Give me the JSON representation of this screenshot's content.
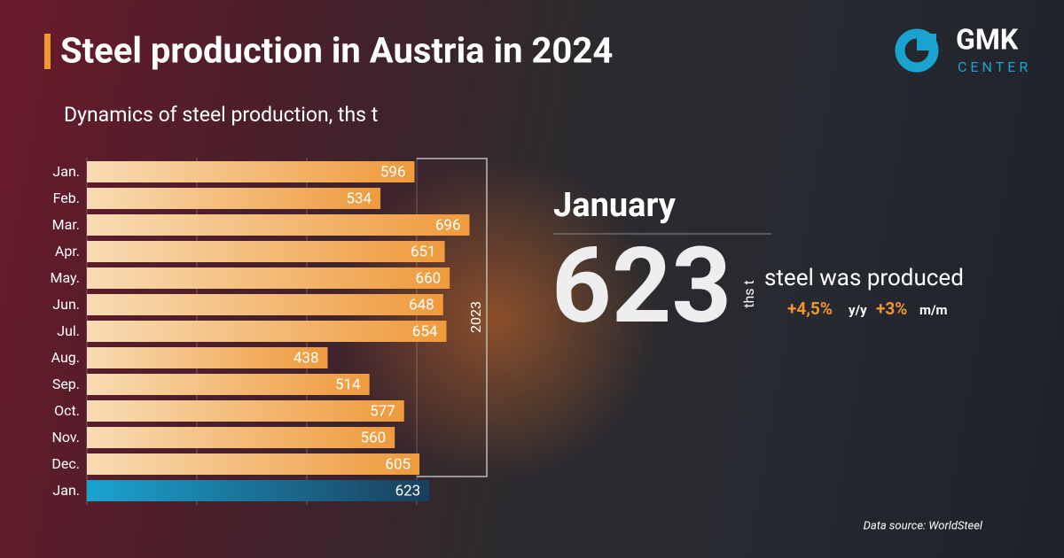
{
  "header": {
    "title": "Steel production in Austria in 2024",
    "logo": "GMK",
    "logo_sub": "CENTER"
  },
  "chart_data": {
    "type": "bar",
    "orientation": "horizontal",
    "title": "Dynamics of steel production, ths t",
    "categories": [
      "Jan.",
      "Feb.",
      "Mar.",
      "Apr.",
      "May.",
      "Jun.",
      "Jul.",
      "Aug.",
      "Sep.",
      "Oct.",
      "Nov.",
      "Dec.",
      "Jan."
    ],
    "values": [
      596,
      534,
      696,
      651,
      660,
      648,
      654,
      438,
      514,
      577,
      560,
      605,
      623
    ],
    "colors": [
      "#ef9a3c",
      "#ef9a3c",
      "#ef9a3c",
      "#ef9a3c",
      "#ef9a3c",
      "#ef9a3c",
      "#ef9a3c",
      "#ef9a3c",
      "#ef9a3c",
      "#ef9a3c",
      "#ef9a3c",
      "#ef9a3c",
      "#1aa3cf"
    ],
    "xlim": [
      0,
      700
    ],
    "xticks": [
      0,
      200,
      400,
      600
    ],
    "grid": true,
    "bracket_label": "2023"
  },
  "highlight": {
    "month": "January",
    "value": "623",
    "unit": "ths t",
    "text": "steel was produced",
    "yy": "+4,5%",
    "yy_label": "y/y",
    "mm": "+3%",
    "mm_label": "m/m"
  },
  "source": "Data source: WorldSteel"
}
